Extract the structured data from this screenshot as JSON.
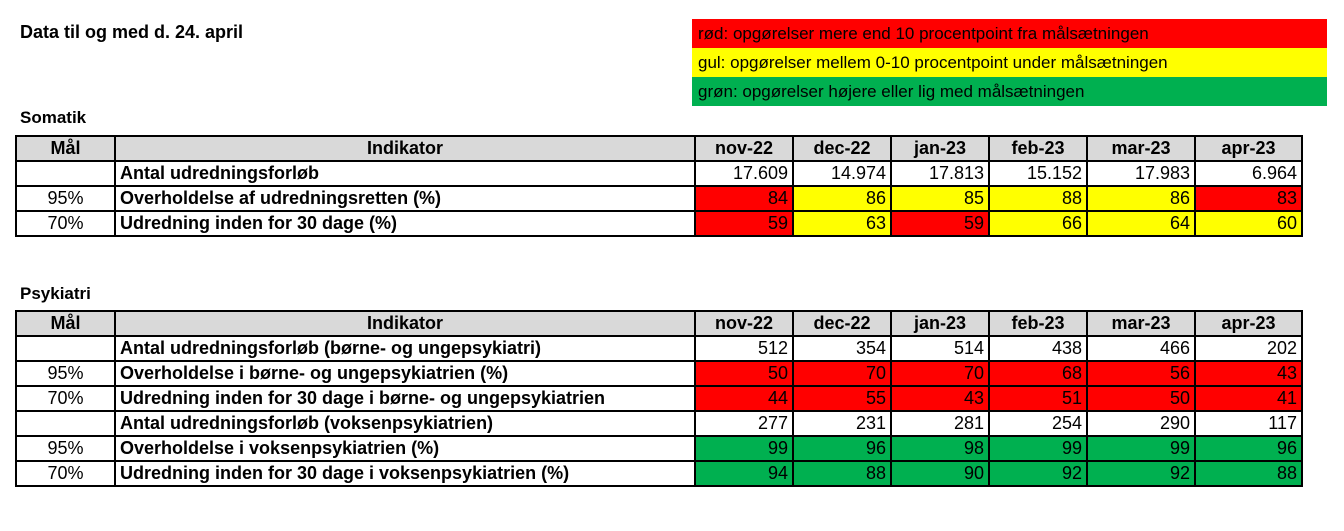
{
  "title": "Data til og med d. 24. april",
  "legend": [
    {
      "text": "rød: opgørelser mere end 10 procentpoint fra målsætningen",
      "color": "#ff0000"
    },
    {
      "text": "gul: opgørelser mellem 0-10 procentpoint under målsætningen",
      "color": "#ffff00"
    },
    {
      "text": "grøn: opgørelser højere eller lig med målsætningen",
      "color": "#00b050"
    }
  ],
  "columns": [
    "Mål",
    "Indikator",
    "nov-22",
    "dec-22",
    "jan-23",
    "feb-23",
    "mar-23",
    "apr-23"
  ],
  "sections": [
    {
      "name": "Somatik",
      "rows": [
        {
          "goal": "",
          "indicator": "Antal udredningsforløb",
          "values": [
            "17.609",
            "14.974",
            "17.813",
            "15.152",
            "17.983",
            "6.964"
          ],
          "colors": [
            "",
            "",
            "",
            "",
            "",
            ""
          ]
        },
        {
          "goal": "95%",
          "indicator": "Overholdelse af udredningsretten (%)",
          "values": [
            "84",
            "86",
            "85",
            "88",
            "86",
            "83"
          ],
          "colors": [
            "red",
            "yellow",
            "yellow",
            "yellow",
            "yellow",
            "red"
          ]
        },
        {
          "goal": "70%",
          "indicator": "Udredning inden for 30 dage (%)",
          "values": [
            "59",
            "63",
            "59",
            "66",
            "64",
            "60"
          ],
          "colors": [
            "red",
            "yellow",
            "red",
            "yellow",
            "yellow",
            "yellow"
          ]
        }
      ]
    },
    {
      "name": "Psykiatri",
      "rows": [
        {
          "goal": "",
          "indicator": "Antal udredningsforløb (børne- og ungepsykiatri)",
          "values": [
            "512",
            "354",
            "514",
            "438",
            "466",
            "202"
          ],
          "colors": [
            "",
            "",
            "",
            "",
            "",
            ""
          ]
        },
        {
          "goal": "95%",
          "indicator": "Overholdelse i børne- og ungepsykiatrien (%)",
          "values": [
            "50",
            "70",
            "70",
            "68",
            "56",
            "43"
          ],
          "colors": [
            "red",
            "red",
            "red",
            "red",
            "red",
            "red"
          ]
        },
        {
          "goal": "70%",
          "indicator": "Udredning inden for 30 dage i børne- og ungepsykiatrien",
          "values": [
            "44",
            "55",
            "43",
            "51",
            "50",
            "41"
          ],
          "colors": [
            "red",
            "red",
            "red",
            "red",
            "red",
            "red"
          ]
        },
        {
          "goal": "",
          "indicator": "Antal udredningsforløb (voksenpsykiatrien)",
          "values": [
            "277",
            "231",
            "281",
            "254",
            "290",
            "117"
          ],
          "colors": [
            "",
            "",
            "",
            "",
            "",
            ""
          ]
        },
        {
          "goal": "95%",
          "indicator": "Overholdelse i voksenpsykiatrien (%)",
          "values": [
            "99",
            "96",
            "98",
            "99",
            "99",
            "96"
          ],
          "colors": [
            "green",
            "green",
            "green",
            "green",
            "green",
            "green"
          ]
        },
        {
          "goal": "70%",
          "indicator": "Udredning inden for 30 dage i voksenpsykiatrien (%)",
          "values": [
            "94",
            "88",
            "90",
            "92",
            "92",
            "88"
          ],
          "colors": [
            "green",
            "green",
            "green",
            "green",
            "green",
            "green"
          ]
        }
      ]
    }
  ]
}
